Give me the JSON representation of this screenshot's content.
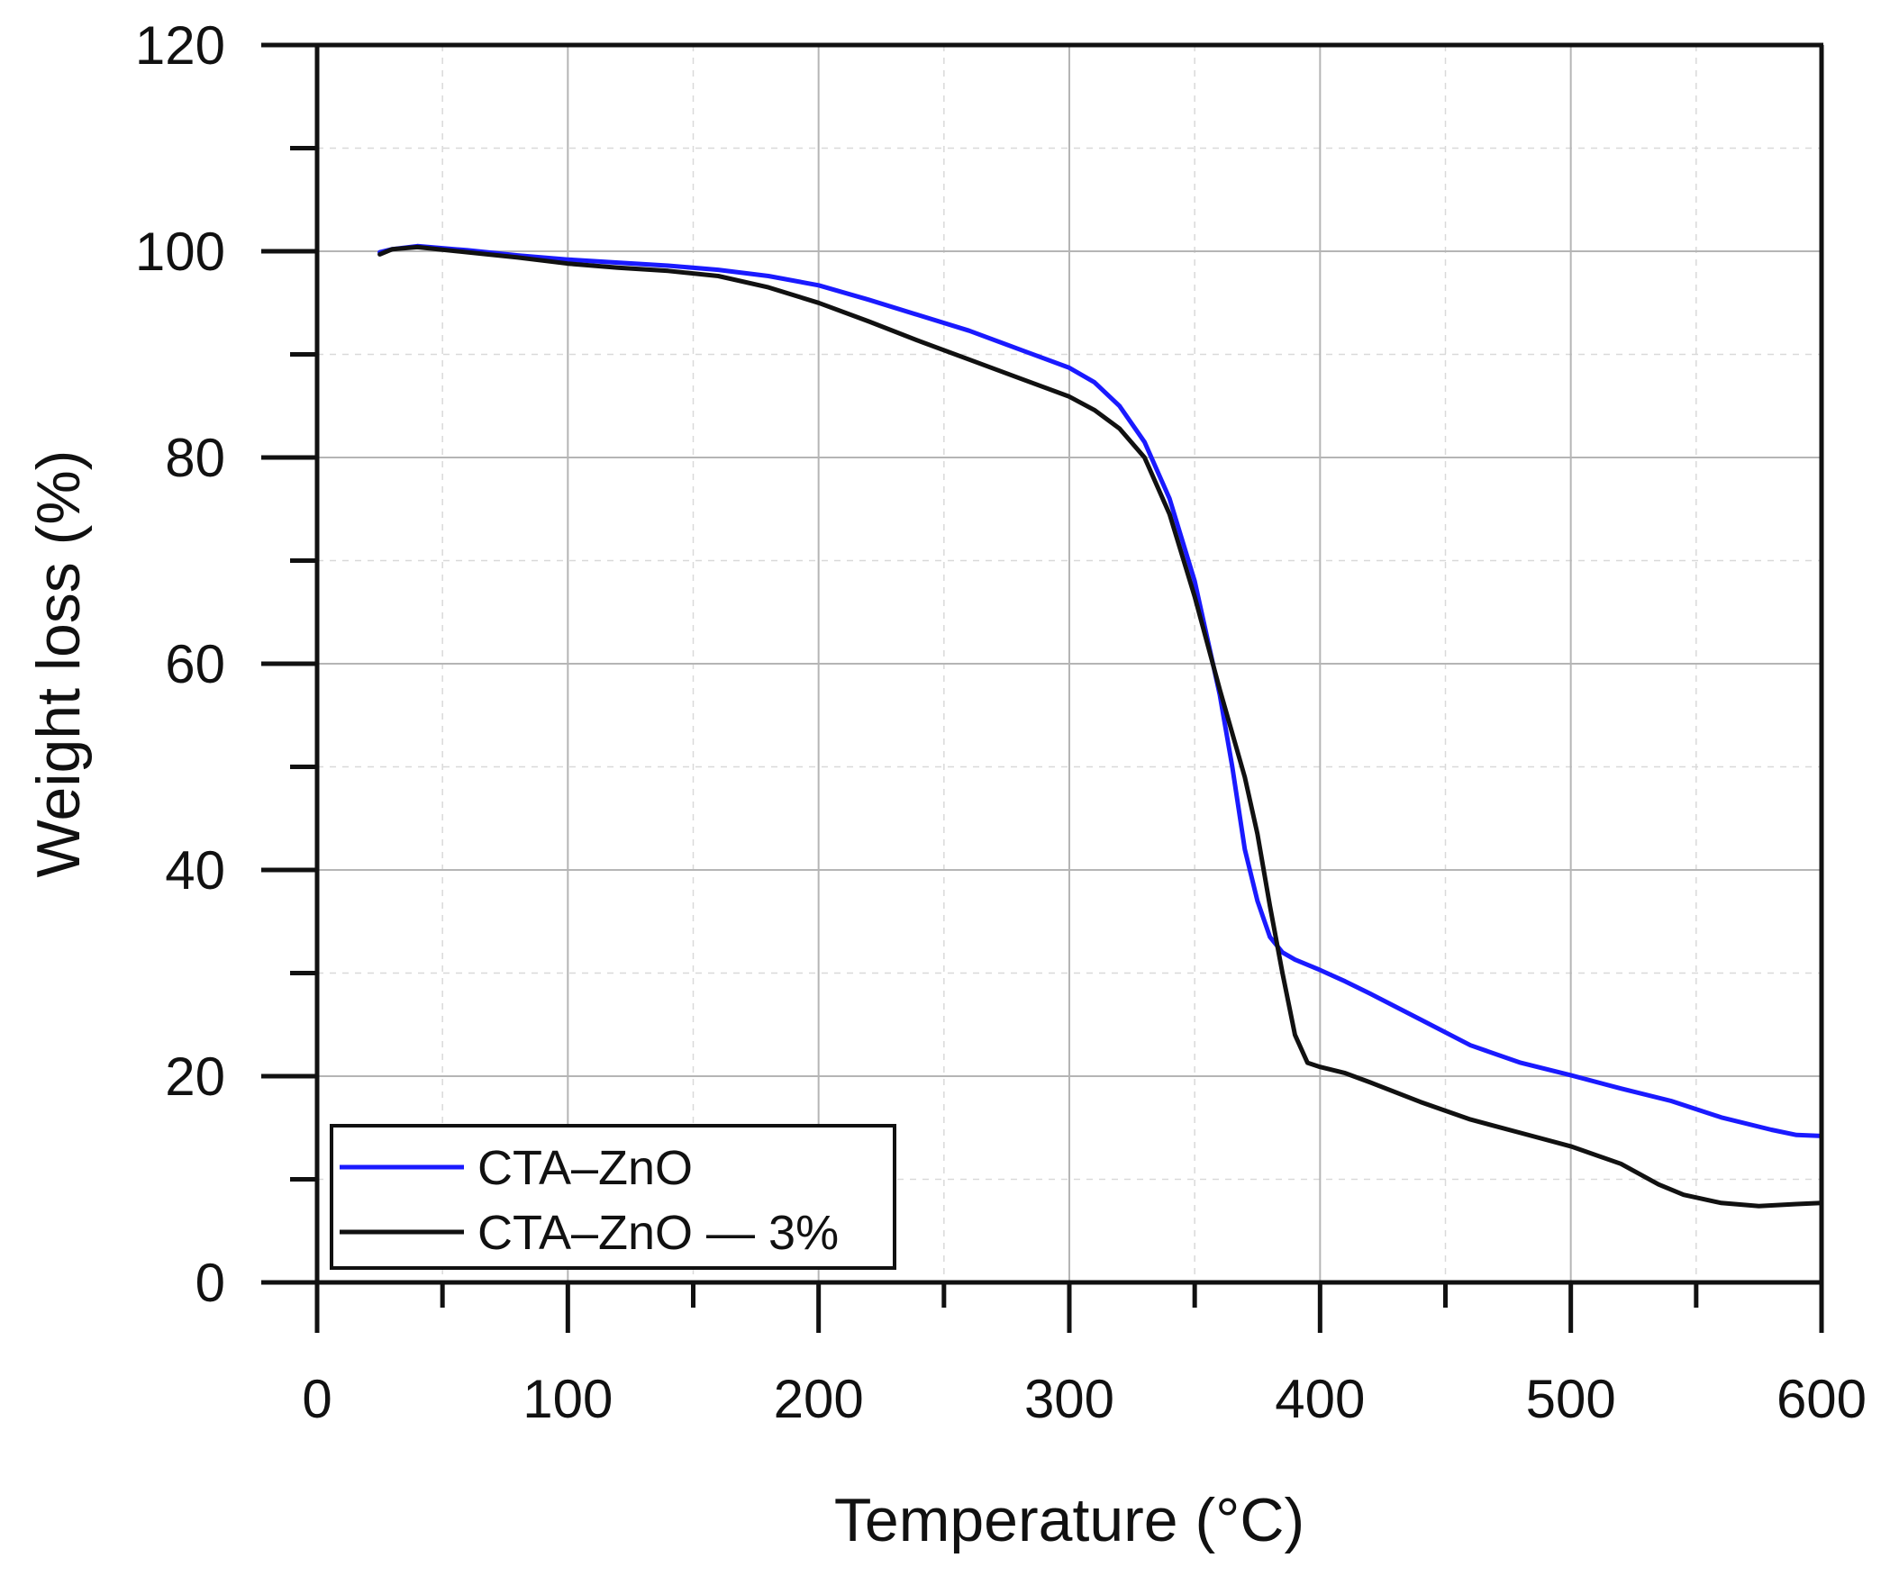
{
  "chart_data": {
    "type": "line",
    "title": "",
    "xlabel": "Temperature (°C)",
    "ylabel": "Weight loss (%)",
    "xlim": [
      0,
      600
    ],
    "ylim": [
      0,
      120
    ],
    "xticks": [
      0,
      100,
      200,
      300,
      400,
      500,
      600
    ],
    "yticks": [
      0,
      20,
      40,
      60,
      80,
      100,
      120
    ],
    "xtick_labels": [
      "0",
      "100",
      "200",
      "300",
      "400",
      "500",
      "600"
    ],
    "ytick_labels": [
      "0",
      "20",
      "40",
      "60",
      "80",
      "100",
      "120"
    ],
    "x_minor_step": 50,
    "y_minor_step": 10,
    "grid": true,
    "legend_position": "bottom-left",
    "series": [
      {
        "name": "CTA–ZnO",
        "color": "#1a1aff",
        "points": [
          [
            25,
            99.9
          ],
          [
            30,
            100.2
          ],
          [
            40,
            100.5
          ],
          [
            60,
            100.1
          ],
          [
            80,
            99.6
          ],
          [
            100,
            99.2
          ],
          [
            120,
            98.9
          ],
          [
            140,
            98.6
          ],
          [
            160,
            98.2
          ],
          [
            180,
            97.6
          ],
          [
            200,
            96.7
          ],
          [
            220,
            95.3
          ],
          [
            240,
            93.8
          ],
          [
            260,
            92.3
          ],
          [
            280,
            90.5
          ],
          [
            300,
            88.7
          ],
          [
            310,
            87.3
          ],
          [
            320,
            85.0
          ],
          [
            330,
            81.5
          ],
          [
            340,
            76.0
          ],
          [
            350,
            68.0
          ],
          [
            360,
            57.0
          ],
          [
            365,
            50.0
          ],
          [
            370,
            42.0
          ],
          [
            375,
            37.0
          ],
          [
            380,
            33.5
          ],
          [
            385,
            32.0
          ],
          [
            390,
            31.3
          ],
          [
            400,
            30.3
          ],
          [
            410,
            29.2
          ],
          [
            420,
            28.0
          ],
          [
            440,
            25.5
          ],
          [
            460,
            23.0
          ],
          [
            480,
            21.3
          ],
          [
            500,
            20.1
          ],
          [
            520,
            18.8
          ],
          [
            540,
            17.6
          ],
          [
            560,
            16.0
          ],
          [
            580,
            14.8
          ],
          [
            590,
            14.3
          ],
          [
            600,
            14.2
          ]
        ]
      },
      {
        "name": "CTA–ZnO — 3%",
        "color": "#111111",
        "points": [
          [
            25,
            99.7
          ],
          [
            30,
            100.2
          ],
          [
            40,
            100.4
          ],
          [
            60,
            99.9
          ],
          [
            80,
            99.4
          ],
          [
            100,
            98.8
          ],
          [
            120,
            98.4
          ],
          [
            140,
            98.1
          ],
          [
            160,
            97.6
          ],
          [
            180,
            96.5
          ],
          [
            200,
            95.0
          ],
          [
            220,
            93.2
          ],
          [
            240,
            91.3
          ],
          [
            260,
            89.5
          ],
          [
            280,
            87.7
          ],
          [
            300,
            85.9
          ],
          [
            310,
            84.6
          ],
          [
            320,
            82.8
          ],
          [
            330,
            80.0
          ],
          [
            340,
            74.5
          ],
          [
            350,
            66.5
          ],
          [
            360,
            57.5
          ],
          [
            370,
            49.0
          ],
          [
            375,
            43.5
          ],
          [
            380,
            36.5
          ],
          [
            385,
            30.0
          ],
          [
            390,
            24.0
          ],
          [
            395,
            21.3
          ],
          [
            400,
            20.9
          ],
          [
            410,
            20.3
          ],
          [
            420,
            19.4
          ],
          [
            440,
            17.5
          ],
          [
            460,
            15.8
          ],
          [
            480,
            14.5
          ],
          [
            500,
            13.2
          ],
          [
            520,
            11.5
          ],
          [
            535,
            9.5
          ],
          [
            545,
            8.5
          ],
          [
            560,
            7.7
          ],
          [
            575,
            7.4
          ],
          [
            590,
            7.6
          ],
          [
            600,
            7.7
          ]
        ]
      }
    ]
  }
}
